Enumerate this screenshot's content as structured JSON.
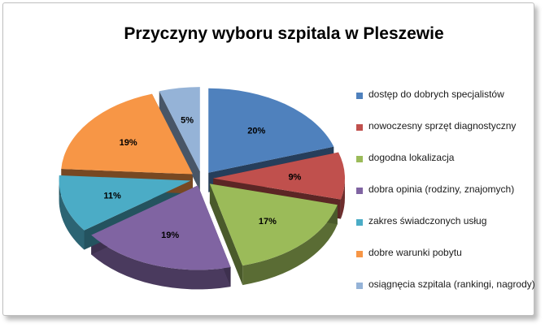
{
  "chart_data": {
    "type": "pie",
    "title": "Przyczyny wyboru szpitala w Pleszewie",
    "legend_position": "right",
    "data_labels": "percent",
    "style": "3d-exploded",
    "categories": [
      "dostęp do dobrych specjalistów",
      "nowoczesny sprzęt diagnostyczny",
      "dogodna lokalizacja",
      "dobra opinia (rodziny, znajomych)",
      "zakres świadczonych usług",
      "dobre warunki pobytu",
      "osiągnęcia szpitala (rankingi, nagrody)"
    ],
    "values": [
      20,
      9,
      17,
      19,
      11,
      19,
      5
    ],
    "value_labels": [
      "20%",
      "9%",
      "17%",
      "19%",
      "11%",
      "19%",
      "5%"
    ],
    "colors": [
      "#4f81bd",
      "#c0504d",
      "#9bbb59",
      "#8064a2",
      "#4bacc6",
      "#f79646",
      "#95b3d7"
    ]
  }
}
